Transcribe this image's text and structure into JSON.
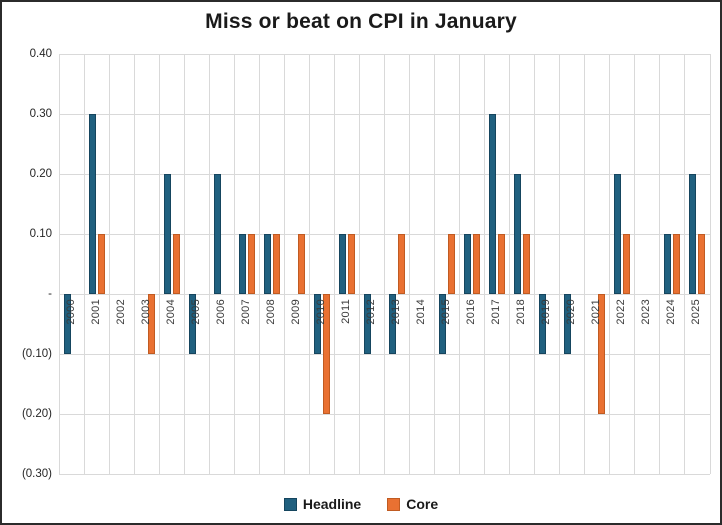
{
  "window": {
    "background": "#ffffff",
    "border_color": "#2b2b2b"
  },
  "chart": {
    "title": "Miss or beat on CPI in January",
    "legend": [
      {
        "name": "Headline",
        "color": "#20607f",
        "border_color": "#15455e"
      },
      {
        "name": "Core",
        "color": "#e97132",
        "border_color": "#c05b22"
      }
    ]
  },
  "chart_data": {
    "type": "bar",
    "title": "Miss or beat on CPI in January",
    "categories": [
      "2000",
      "2001",
      "2002",
      "2003",
      "2004",
      "2005",
      "2006",
      "2007",
      "2008",
      "2009",
      "2010",
      "2011",
      "2012",
      "2013",
      "2014",
      "2015",
      "2016",
      "2017",
      "2018",
      "2019",
      "2020",
      "2021",
      "2022",
      "2023",
      "2024",
      "2025"
    ],
    "series": [
      {
        "name": "Headline",
        "color": "#20607f",
        "border_color": "#15455e",
        "values": [
          -0.1,
          0.3,
          0,
          0,
          0.2,
          -0.1,
          0.2,
          0.1,
          0.1,
          0,
          -0.1,
          0.1,
          -0.1,
          -0.1,
          0,
          -0.1,
          0.1,
          0.3,
          0.2,
          -0.1,
          -0.1,
          0,
          0.2,
          0,
          0.1,
          0.2
        ]
      },
      {
        "name": "Core",
        "color": "#e97132",
        "border_color": "#c05b22",
        "values": [
          0,
          0.1,
          0,
          -0.1,
          0.1,
          0,
          0,
          0.1,
          0.1,
          0.1,
          -0.2,
          0.1,
          0,
          0.1,
          0,
          0.1,
          0.1,
          0.1,
          0.1,
          0,
          0,
          -0.2,
          0.1,
          0,
          0.1,
          0.1
        ]
      }
    ],
    "y_ticks": [
      {
        "value": 0.4,
        "label": "0.40"
      },
      {
        "value": 0.3,
        "label": "0.30"
      },
      {
        "value": 0.2,
        "label": "0.20"
      },
      {
        "value": 0.1,
        "label": "0.10"
      },
      {
        "value": 0.0,
        "label": "-"
      },
      {
        "value": -0.1,
        "label": "(0.10)"
      },
      {
        "value": -0.2,
        "label": "(0.20)"
      },
      {
        "value": -0.3,
        "label": "(0.30)"
      }
    ],
    "ylim": [
      -0.3,
      0.4
    ],
    "xlabel": "",
    "ylabel": "",
    "grid": true,
    "legend_position": "bottom",
    "gridline_color": "#d9d9d9"
  }
}
